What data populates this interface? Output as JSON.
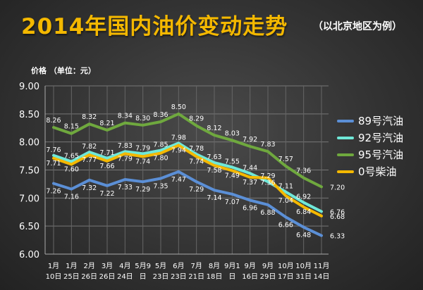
{
  "header": {
    "title": "2014年国内油价变动走势",
    "subtitle": "（以北京地区为例）"
  },
  "chart_data": {
    "type": "line",
    "ylabel": "价格 （单位：元）",
    "ylim": [
      6.0,
      9.0
    ],
    "yticks": [
      "6.00",
      "6.50",
      "7.00",
      "7.50",
      "8.00",
      "8.50",
      "9.00"
    ],
    "categories": [
      [
        "1月",
        "10日"
      ],
      [
        "1月",
        "25日"
      ],
      [
        "2月",
        "26日"
      ],
      [
        "3月",
        "26日"
      ],
      [
        "4月",
        "24日"
      ],
      [
        "5月9",
        "日"
      ],
      [
        "5月",
        "23日"
      ],
      [
        "6月",
        "23日"
      ],
      [
        "7月",
        "21日"
      ],
      [
        "8月",
        "18日"
      ],
      [
        "9月1",
        "日"
      ],
      [
        "9月",
        "16日"
      ],
      [
        "9月",
        "29日"
      ],
      [
        "10月",
        "17日"
      ],
      [
        "10月",
        "31日"
      ],
      [
        "11月",
        "14日"
      ]
    ],
    "series": [
      {
        "name": "89号汽油",
        "color": "#5b8fd6",
        "values": [
          7.26,
          7.16,
          7.32,
          7.22,
          7.33,
          7.29,
          7.35,
          7.47,
          7.29,
          7.14,
          7.07,
          6.96,
          6.88,
          6.66,
          6.48,
          6.33
        ],
        "labels": [
          "7.26",
          "7.16",
          "7.32",
          "7.22",
          "7.33",
          "7.29",
          "7.35",
          "7.47",
          "7.29",
          "7.14",
          "7.07",
          "6.96",
          "6.88",
          "6.66",
          "6.48",
          "6.33"
        ]
      },
      {
        "name": "92号汽油",
        "color": "#6fe8d8",
        "values": [
          7.76,
          7.65,
          7.82,
          7.71,
          7.83,
          7.79,
          7.85,
          7.98,
          7.78,
          7.63,
          7.55,
          7.44,
          7.29,
          7.11,
          6.92,
          6.76
        ],
        "labels": [
          "7.76",
          "7.65",
          "7.82",
          "7.71",
          "7.83",
          "7.79",
          "7.85",
          "7.98",
          "7.78",
          "7.63",
          "7.55",
          "7.44",
          "7.29",
          "7.11",
          "6.92",
          "6.76"
        ]
      },
      {
        "name": "95号汽油",
        "color": "#6fa83e",
        "values": [
          8.26,
          8.15,
          8.32,
          8.21,
          8.34,
          8.3,
          8.36,
          8.5,
          8.29,
          8.12,
          8.03,
          7.92,
          7.83,
          7.57,
          7.36,
          7.2
        ],
        "labels": [
          "8.26",
          "8.15",
          "8.32",
          "8.21",
          "8.34",
          "8.30",
          "8.36",
          "8.50",
          "8.29",
          "8.12",
          "8.03",
          "7.92",
          "7.83",
          "7.57",
          "7.36",
          "7.20"
        ]
      },
      {
        "name": "0号柴油",
        "color": "#f4b800",
        "values": [
          7.71,
          7.6,
          7.77,
          7.66,
          7.79,
          7.74,
          7.8,
          7.94,
          7.74,
          7.58,
          7.49,
          7.37,
          7.36,
          7.04,
          6.84,
          6.68
        ],
        "labels": [
          "7.71",
          "7.60",
          "7.77",
          "7.66",
          "7.79",
          "7.74",
          "7.80",
          "7.94",
          "7.74",
          "7.58",
          "7.49",
          "7.37",
          "7.36",
          "7.04",
          "6.84",
          "6.68"
        ]
      }
    ],
    "legend": "right",
    "grid": true
  }
}
